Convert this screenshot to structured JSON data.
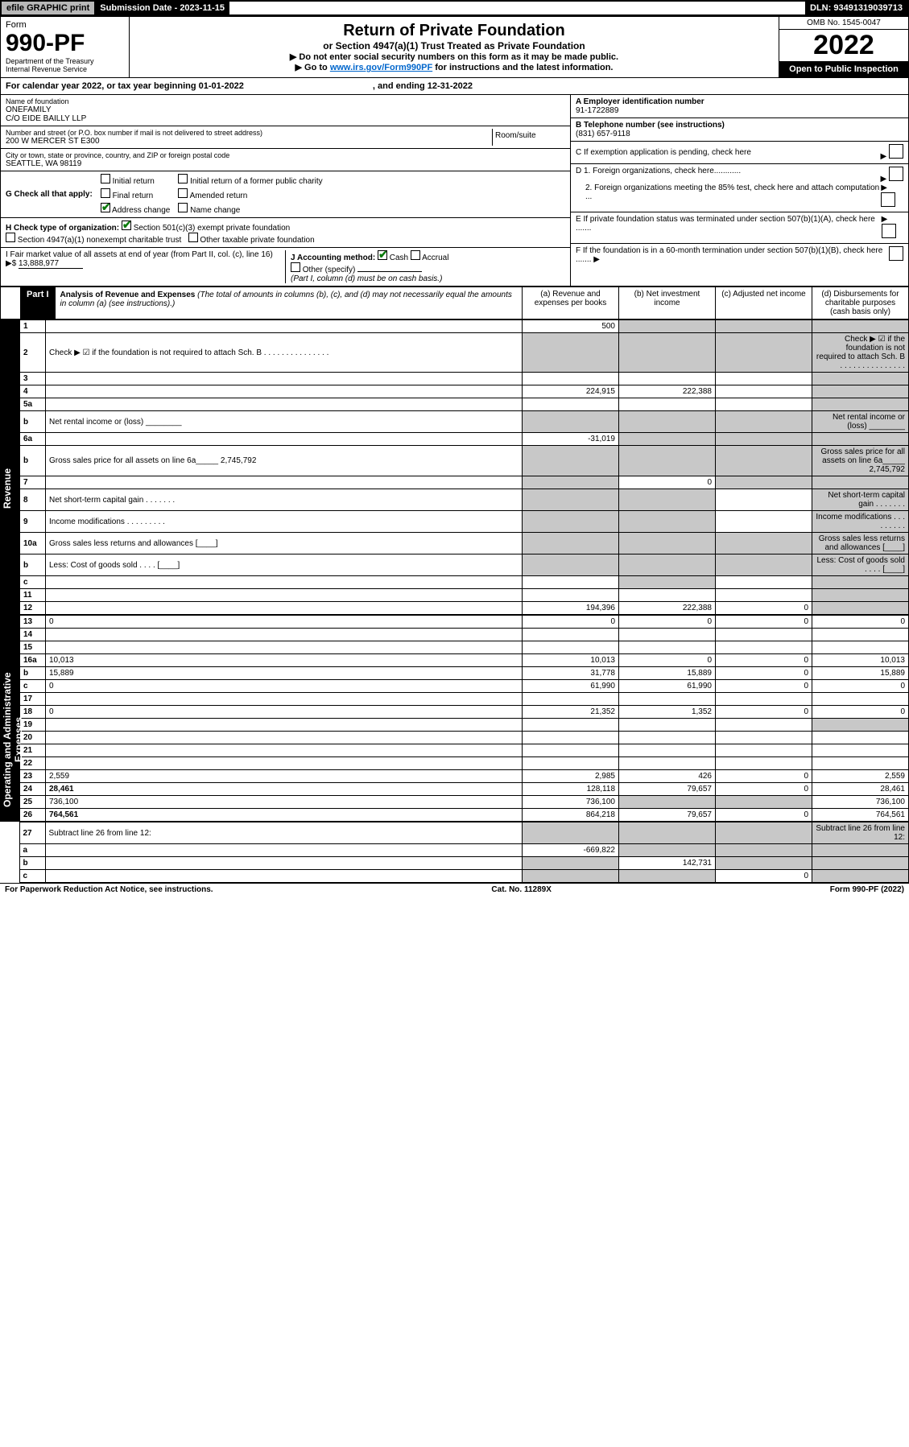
{
  "topbar": {
    "efile": "efile GRAPHIC print",
    "subdate_label": "Submission Date - 2023-11-15",
    "dln": "DLN: 93491319039713"
  },
  "header": {
    "form_label": "Form",
    "form_no": "990-PF",
    "dept": "Department of the Treasury",
    "irs": "Internal Revenue Service",
    "title": "Return of Private Foundation",
    "subtitle": "or Section 4947(a)(1) Trust Treated as Private Foundation",
    "instr1": "▶ Do not enter social security numbers on this form as it may be made public.",
    "instr2_pre": "▶ Go to ",
    "instr2_link": "www.irs.gov/Form990PF",
    "instr2_post": " for instructions and the latest information.",
    "omb": "OMB No. 1545-0047",
    "year": "2022",
    "open": "Open to Public Inspection"
  },
  "calyear": {
    "text1": "For calendar year 2022, or tax year beginning 01-01-2022",
    "text2": ", and ending 12-31-2022"
  },
  "info_left": {
    "name_label": "Name of foundation",
    "name1": "ONEFAMILY",
    "name2": "C/O EIDE BAILLY LLP",
    "addr_label": "Number and street (or P.O. box number if mail is not delivered to street address)",
    "addr": "200 W MERCER ST E300",
    "room_label": "Room/suite",
    "city_label": "City or town, state or province, country, and ZIP or foreign postal code",
    "city": "SEATTLE, WA  98119"
  },
  "info_right": {
    "A_label": "A Employer identification number",
    "A_val": "91-1722889",
    "B_label": "B Telephone number (see instructions)",
    "B_val": "(831) 657-9118",
    "C_label": "C If exemption application is pending, check here",
    "D1": "D 1. Foreign organizations, check here............",
    "D2": "2. Foreign organizations meeting the 85% test, check here and attach computation ...",
    "E": "E  If private foundation status was terminated under section 507(b)(1)(A), check here .......",
    "F": "F  If the foundation is in a 60-month termination under section 507(b)(1)(B), check here .......  ▶"
  },
  "G": {
    "label": "G Check all that apply:",
    "opts": [
      "Initial return",
      "Final return",
      "Address change",
      "Initial return of a former public charity",
      "Amended return",
      "Name change"
    ]
  },
  "H": {
    "label": "H Check type of organization:",
    "opt1": "Section 501(c)(3) exempt private foundation",
    "opt2": "Section 4947(a)(1) nonexempt charitable trust",
    "opt3": "Other taxable private foundation"
  },
  "I": {
    "label": "I Fair market value of all assets at end of year (from Part II, col. (c), line 16) ▶$",
    "val": "13,888,977"
  },
  "J": {
    "label": "J Accounting method:",
    "cash": "Cash",
    "accrual": "Accrual",
    "other": "Other (specify)",
    "note": "(Part I, column (d) must be on cash basis.)"
  },
  "part1": {
    "label": "Part I",
    "title": "Analysis of Revenue and Expenses",
    "title_note": "(The total of amounts in columns (b), (c), and (d) may not necessarily equal the amounts in column (a) (see instructions).)",
    "col_a": "(a)  Revenue and expenses per books",
    "col_b": "(b)  Net investment income",
    "col_c": "(c)  Adjusted net income",
    "col_d": "(d)  Disbursements for charitable purposes (cash basis only)"
  },
  "side_labels": {
    "rev": "Revenue",
    "exp": "Operating and Administrative Expenses"
  },
  "rows_rev": [
    {
      "n": "1",
      "d": "",
      "a": "500",
      "b": "",
      "c": "",
      "greyBCD": true
    },
    {
      "n": "2",
      "d": "Check ▶ ☑ if the foundation is not required to attach Sch. B   .  .  .  .  .  .  .  .  .  .  .  .  .  .  .",
      "greyAll": true
    },
    {
      "n": "3",
      "d": "",
      "a": "",
      "b": "",
      "c": "",
      "greyD": true
    },
    {
      "n": "4",
      "d": "",
      "a": "224,915",
      "b": "222,388",
      "c": "",
      "greyD": true
    },
    {
      "n": "5a",
      "d": "",
      "a": "",
      "b": "",
      "c": "",
      "greyD": true
    },
    {
      "n": "b",
      "d": "Net rental income or (loss)  ________",
      "greyAll": true
    },
    {
      "n": "6a",
      "d": "",
      "a": "-31,019",
      "b": "",
      "c": "",
      "greyBCD": true
    },
    {
      "n": "b",
      "d": "Gross sales price for all assets on line 6a_____  2,745,792",
      "greyAll": true
    },
    {
      "n": "7",
      "d": "",
      "a": "",
      "b": "0",
      "c": "",
      "greyACD": true,
      "whiteB": true
    },
    {
      "n": "8",
      "d": "Net short-term capital gain  .   .   .   .   .   .   .",
      "greyABD": true
    },
    {
      "n": "9",
      "d": "Income modifications  .   .   .   .   .   .   .   .   .",
      "greyABD": true
    },
    {
      "n": "10a",
      "d": "Gross sales less returns and allowances  [____]",
      "greyAll": true
    },
    {
      "n": "b",
      "d": "Less: Cost of goods sold     .   .   .   .   [____]",
      "greyAll": true
    },
    {
      "n": "c",
      "d": "",
      "a": "",
      "b": "",
      "c": "",
      "greyBD": true
    },
    {
      "n": "11",
      "d": "",
      "a": "",
      "b": "",
      "c": "",
      "greyD": true
    },
    {
      "n": "12",
      "d": "",
      "a": "194,396",
      "b": "222,388",
      "c": "0",
      "bold": true,
      "greyD": true
    }
  ],
  "rows_exp": [
    {
      "n": "13",
      "d": "0",
      "a": "0",
      "b": "0",
      "c": "0"
    },
    {
      "n": "14",
      "d": "",
      "a": "",
      "b": "",
      "c": ""
    },
    {
      "n": "15",
      "d": "",
      "a": "",
      "b": "",
      "c": ""
    },
    {
      "n": "16a",
      "d": "10,013",
      "a": "10,013",
      "b": "0",
      "c": "0"
    },
    {
      "n": "b",
      "d": "15,889",
      "a": "31,778",
      "b": "15,889",
      "c": "0"
    },
    {
      "n": "c",
      "d": "0",
      "a": "61,990",
      "b": "61,990",
      "c": "0"
    },
    {
      "n": "17",
      "d": "",
      "a": "",
      "b": "",
      "c": ""
    },
    {
      "n": "18",
      "d": "0",
      "a": "21,352",
      "b": "1,352",
      "c": "0"
    },
    {
      "n": "19",
      "d": "",
      "a": "",
      "b": "",
      "c": "",
      "greyD": true
    },
    {
      "n": "20",
      "d": "",
      "a": "",
      "b": "",
      "c": ""
    },
    {
      "n": "21",
      "d": "",
      "a": "",
      "b": "",
      "c": ""
    },
    {
      "n": "22",
      "d": "",
      "a": "",
      "b": "",
      "c": ""
    },
    {
      "n": "23",
      "d": "2,559",
      "a": "2,985",
      "b": "426",
      "c": "0"
    },
    {
      "n": "24",
      "d": "28,461",
      "a": "128,118",
      "b": "79,657",
      "c": "0",
      "bold": true
    },
    {
      "n": "25",
      "d": "736,100",
      "a": "736,100",
      "b": "",
      "c": "",
      "greyBC": true
    },
    {
      "n": "26",
      "d": "764,561",
      "a": "864,218",
      "b": "79,657",
      "c": "0",
      "bold": true
    }
  ],
  "rows_bottom": [
    {
      "n": "27",
      "d": "Subtract line 26 from line 12:",
      "greyAll": true
    },
    {
      "n": "a",
      "d": "",
      "a": "-669,822",
      "b": "",
      "c": "",
      "greyBCD": true,
      "bold": true
    },
    {
      "n": "b",
      "d": "",
      "a": "",
      "b": "142,731",
      "c": "",
      "greyACD": true,
      "bold": true,
      "whiteB": true
    },
    {
      "n": "c",
      "d": "",
      "a": "",
      "b": "",
      "c": "0",
      "greyABD": true,
      "bold": true,
      "whiteC": true
    }
  ],
  "footer": {
    "left": "For Paperwork Reduction Act Notice, see instructions.",
    "mid": "Cat. No. 11289X",
    "right": "Form 990-PF (2022)"
  }
}
